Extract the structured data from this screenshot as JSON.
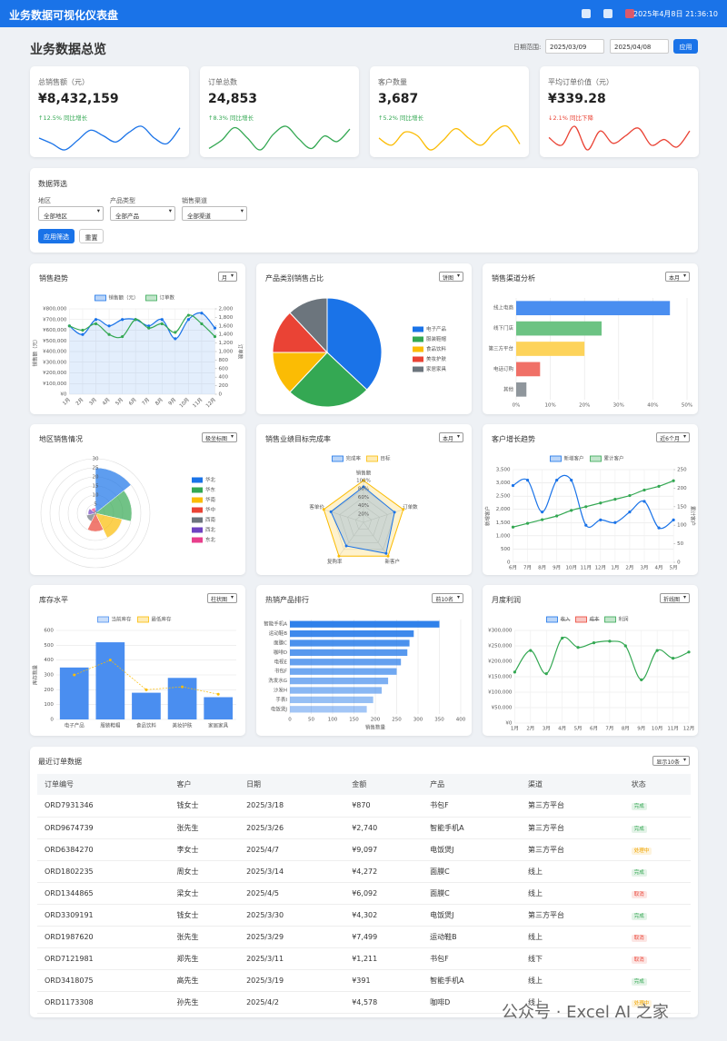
{
  "header": {
    "title": "业务数据可视化仪表盘",
    "datetime": "2025年4月8日 21:36:10"
  },
  "overview": {
    "title": "业务数据总览",
    "date_label": "日期范围:",
    "start_date": "2025/03/09",
    "end_date": "2025/04/08",
    "apply": "应用"
  },
  "kpis": [
    {
      "label": "总销售额（元）",
      "value": "¥8,432,159",
      "change": "↑12.5% 同比增长",
      "direction": "up",
      "color": "#1a73e8",
      "trend": [
        45,
        38,
        30,
        42,
        55,
        48,
        40,
        52,
        60,
        45,
        38,
        58
      ]
    },
    {
      "label": "订单总数",
      "value": "24,853",
      "change": "↑8.3% 同比增长",
      "direction": "up",
      "color": "#34a853",
      "trend": [
        30,
        42,
        60,
        45,
        28,
        50,
        62,
        44,
        30,
        48,
        40,
        58
      ]
    },
    {
      "label": "客户数量",
      "value": "3,687",
      "change": "↑5.2% 同比增长",
      "direction": "up",
      "color": "#fbbc04",
      "trend": [
        50,
        44,
        55,
        52,
        40,
        48,
        58,
        50,
        44,
        55,
        60,
        45
      ]
    },
    {
      "label": "平均订单价值（元）",
      "value": "¥339.28",
      "change": "↓2.1% 同比下降",
      "direction": "down",
      "color": "#ea4335",
      "trend": [
        48,
        40,
        60,
        35,
        55,
        42,
        50,
        58,
        40,
        46,
        38,
        55
      ]
    }
  ],
  "filter": {
    "title": "数据筛选",
    "fields": [
      {
        "label": "地区",
        "value": "全部地区"
      },
      {
        "label": "产品类型",
        "value": "全部产品"
      },
      {
        "label": "销售渠道",
        "value": "全部渠道"
      }
    ],
    "apply": "应用筛选",
    "reset": "重置"
  },
  "chart_data": [
    {
      "type": "line",
      "title": "销售趋势",
      "select": "月",
      "categories": [
        "1月",
        "2月",
        "3月",
        "4月",
        "5月",
        "6月",
        "7月",
        "8月",
        "9月",
        "10月",
        "11月",
        "12月"
      ],
      "series": [
        {
          "name": "销售额（元）",
          "color": "#1a73e8",
          "fill": true,
          "values": [
            640000,
            560000,
            700000,
            640000,
            700000,
            700000,
            640000,
            700000,
            520000,
            700000,
            760000,
            620000
          ]
        },
        {
          "name": "订单数",
          "color": "#34a853",
          "axis": "y2",
          "values": [
            1600,
            1500,
            1650,
            1400,
            1350,
            1750,
            1550,
            1650,
            1450,
            1850,
            1650,
            1350
          ]
        }
      ],
      "ylabel": "销售额（元）",
      "y2label": "订单数",
      "ylim": [
        0,
        800000
      ],
      "yticks": [
        {
          "value": 0,
          "label": "¥0"
        },
        {
          "value": 100000,
          "label": "¥100,000"
        },
        {
          "value": 200000,
          "label": "¥200,000"
        },
        {
          "value": 300000,
          "label": "¥300,000"
        },
        {
          "value": 400000,
          "label": "¥400,000"
        },
        {
          "value": 500000,
          "label": "¥500,000"
        },
        {
          "value": 600000,
          "label": "¥600,000"
        },
        {
          "value": 700000,
          "label": "¥700,000"
        },
        {
          "value": 800000,
          "label": "¥800,000"
        }
      ],
      "y2lim": [
        0,
        2000
      ],
      "y2ticks": [
        0,
        200,
        400,
        600,
        800,
        {
          "value": 1000,
          "label": "1,000"
        },
        {
          "value": 1200,
          "label": "1,200"
        },
        {
          "value": 1400,
          "label": "1,400"
        },
        {
          "value": 1600,
          "label": "1,600"
        },
        {
          "value": 1800,
          "label": "1,800"
        },
        {
          "value": 2000,
          "label": "2,000"
        }
      ],
      "grid": true
    },
    {
      "type": "pie",
      "title": "产品类别销售占比",
      "select": "饼图",
      "categories": [
        "电子产品",
        "服装鞋帽",
        "食品饮料",
        "美妆护肤",
        "家居家具"
      ],
      "values": [
        37,
        25,
        13,
        13,
        12
      ],
      "colors": [
        "#1a73e8",
        "#34a853",
        "#fbbc04",
        "#ea4335",
        "#6c757d"
      ]
    },
    {
      "type": "bar",
      "horizontal": true,
      "title": "销售渠道分析",
      "select": "本月",
      "categories": [
        "线上电商",
        "线下门店",
        "第三方平台",
        "电话订购",
        "其他"
      ],
      "values": [
        45,
        25,
        20,
        7,
        3
      ],
      "colors": [
        "#4a8ef0",
        "#6cc383",
        "#fdd35a",
        "#f07067",
        "#8f969c"
      ],
      "xlim": [
        0,
        50
      ],
      "xticks": [
        {
          "value": 0,
          "label": "0%"
        },
        {
          "value": 10,
          "label": "10%"
        },
        {
          "value": 20,
          "label": "20%"
        },
        {
          "value": 30,
          "label": "30%"
        },
        {
          "value": 40,
          "label": "40%"
        },
        {
          "value": 50,
          "label": "50%"
        }
      ],
      "grid": true
    },
    {
      "type": "polar",
      "title": "地区销售情况",
      "select": "极坐标图",
      "categories": [
        "华北",
        "华东",
        "华南",
        "华中",
        "西南",
        "西北",
        "东北"
      ],
      "values": [
        25,
        20,
        15,
        10,
        5,
        4,
        3
      ],
      "colors": [
        "#1a73e8",
        "#34a853",
        "#fbbc04",
        "#ea4335",
        "#6c757d",
        "#6f42c1",
        "#e83e8c"
      ],
      "rlim": [
        0,
        30
      ],
      "rticks": [
        0,
        5,
        10,
        15,
        20,
        25,
        30
      ]
    },
    {
      "type": "radar",
      "title": "销售业绩目标完成率",
      "select": "本月",
      "categories": [
        "销售额",
        "订单数",
        "新客户",
        "复购率",
        "客单价"
      ],
      "series": [
        {
          "name": "完成率",
          "color": "#1a73e8",
          "values": [
            85,
            78,
            92,
            70,
            82
          ]
        },
        {
          "name": "目标",
          "color": "#fbbc04",
          "values": [
            100,
            100,
            100,
            100,
            100
          ]
        }
      ],
      "rlim": [
        0,
        100
      ],
      "rticks": [
        {
          "value": 20,
          "label": "20%"
        },
        {
          "value": 40,
          "label": "40%"
        },
        {
          "value": 60,
          "label": "60%"
        },
        {
          "value": 80,
          "label": "80%"
        },
        {
          "value": 100,
          "label": "100%"
        }
      ]
    },
    {
      "type": "line",
      "title": "客户增长趋势",
      "select": "近6个月",
      "categories": [
        "6月",
        "7月",
        "8月",
        "9月",
        "10月",
        "11月",
        "12月",
        "1月",
        "2月",
        "3月",
        "4月",
        "5月"
      ],
      "series": [
        {
          "name": "新增客户",
          "color": "#1a73e8",
          "values": [
            2900,
            3100,
            1900,
            3100,
            3100,
            1400,
            1600,
            1500,
            1900,
            2300,
            1300,
            1600
          ]
        },
        {
          "name": "累计客户",
          "color": "#34a853",
          "axis": "y2",
          "values": [
            95,
            105,
            115,
            125,
            140,
            150,
            160,
            170,
            180,
            195,
            205,
            220
          ]
        }
      ],
      "ylabel": "新增客户",
      "y2label": "累计客户",
      "ylim": [
        0,
        3500
      ],
      "yticks": [
        0,
        500,
        {
          "value": 1000,
          "label": "1,000"
        },
        {
          "value": 1500,
          "label": "1,500"
        },
        {
          "value": 2000,
          "label": "2,000"
        },
        {
          "value": 2500,
          "label": "2,500"
        },
        {
          "value": 3000,
          "label": "3,000"
        },
        {
          "value": 3500,
          "label": "3,500"
        }
      ],
      "y2lim": [
        0,
        250
      ],
      "y2ticks": [
        0,
        50,
        100,
        150,
        200,
        250
      ],
      "grid": true
    },
    {
      "type": "bar",
      "title": "库存水平",
      "select": "柱状图",
      "categories": [
        "电子产品",
        "服装鞋帽",
        "食品饮料",
        "美妆护肤",
        "家居家具"
      ],
      "series": [
        {
          "name": "当前库存",
          "color": "#4a8ef0",
          "style": "bar",
          "values": [
            350,
            520,
            180,
            280,
            150
          ]
        },
        {
          "name": "最低库存",
          "color": "#fbbc04",
          "style": "line",
          "values": [
            300,
            400,
            200,
            220,
            170
          ]
        }
      ],
      "ylabel": "库存数量",
      "ylim": [
        0,
        600
      ],
      "yticks": [
        0,
        100,
        200,
        300,
        400,
        500,
        600
      ],
      "grid": true
    },
    {
      "type": "bar",
      "horizontal": true,
      "title": "热销产品排行",
      "select": "前10名",
      "categories": [
        "智能手机A",
        "运动鞋B",
        "面膜C",
        "咖啡D",
        "电视E",
        "书包F",
        "洗发水G",
        "沙发H",
        "手表I",
        "电饭煲J"
      ],
      "values": [
        350,
        290,
        280,
        275,
        260,
        250,
        230,
        215,
        195,
        180
      ],
      "color": "#1a73e8",
      "xlabel": "销售数量",
      "xlim": [
        0,
        400
      ],
      "xticks": [
        0,
        50,
        100,
        150,
        200,
        250,
        300,
        350,
        400
      ],
      "grid": true
    },
    {
      "type": "line",
      "title": "月度利润",
      "select": "折线图",
      "categories": [
        "1月",
        "2月",
        "3月",
        "4月",
        "5月",
        "6月",
        "7月",
        "8月",
        "9月",
        "10月",
        "11月",
        "12月"
      ],
      "hidden_series": [
        {
          "name": "收入",
          "color": "#1a73e8"
        },
        {
          "name": "成本",
          "color": "#ea4335"
        }
      ],
      "series": [
        {
          "name": "利润",
          "color": "#34a853",
          "values": [
            165000,
            235000,
            160000,
            275000,
            245000,
            260000,
            265000,
            250000,
            140000,
            235000,
            210000,
            230000
          ]
        }
      ],
      "ylim": [
        0,
        300000
      ],
      "yticks": [
        {
          "value": 0,
          "label": "¥0"
        },
        {
          "value": 50000,
          "label": "¥50,000"
        },
        {
          "value": 100000,
          "label": "¥100,000"
        },
        {
          "value": 150000,
          "label": "¥150,000"
        },
        {
          "value": 200000,
          "label": "¥200,000"
        },
        {
          "value": 250000,
          "label": "¥250,000"
        },
        {
          "value": 300000,
          "label": "¥300,000"
        }
      ],
      "grid": true
    }
  ],
  "orders": {
    "title": "最近订单数据",
    "select": "显示10条",
    "columns": [
      "订单编号",
      "客户",
      "日期",
      "金额",
      "产品",
      "渠道",
      "状态"
    ],
    "rows": [
      [
        "ORD7931346",
        "钱女士",
        "2025/3/18",
        "¥870",
        "书包F",
        "第三方平台",
        "完成"
      ],
      [
        "ORD9674739",
        "张先生",
        "2025/3/26",
        "¥2,740",
        "智能手机A",
        "第三方平台",
        "完成"
      ],
      [
        "ORD6384270",
        "李女士",
        "2025/4/7",
        "¥9,097",
        "电饭煲J",
        "第三方平台",
        "处理中"
      ],
      [
        "ORD1802235",
        "周女士",
        "2025/3/14",
        "¥4,272",
        "面膜C",
        "线上",
        "完成"
      ],
      [
        "ORD1344865",
        "梁女士",
        "2025/4/5",
        "¥6,092",
        "面膜C",
        "线上",
        "取消"
      ],
      [
        "ORD3309191",
        "钱女士",
        "2025/3/30",
        "¥4,302",
        "电饭煲J",
        "第三方平台",
        "完成"
      ],
      [
        "ORD1987620",
        "张先生",
        "2025/3/29",
        "¥7,499",
        "运动鞋B",
        "线上",
        "取消"
      ],
      [
        "ORD7121981",
        "郑先生",
        "2025/3/11",
        "¥1,211",
        "书包F",
        "线下",
        "取消"
      ],
      [
        "ORD3418075",
        "高先生",
        "2025/3/19",
        "¥391",
        "智能手机A",
        "线上",
        "完成"
      ],
      [
        "ORD1173308",
        "孙先生",
        "2025/4/2",
        "¥4,578",
        "咖啡D",
        "线上",
        "处理中"
      ]
    ],
    "status_colors": [
      "#34a853",
      "#34a853",
      "#f0a500",
      "#34a853",
      "#ea4335",
      "#34a853",
      "#ea4335",
      "#ea4335",
      "#34a853",
      "#f0a500"
    ]
  },
  "watermark": "公众号 · Excel AI 之家"
}
